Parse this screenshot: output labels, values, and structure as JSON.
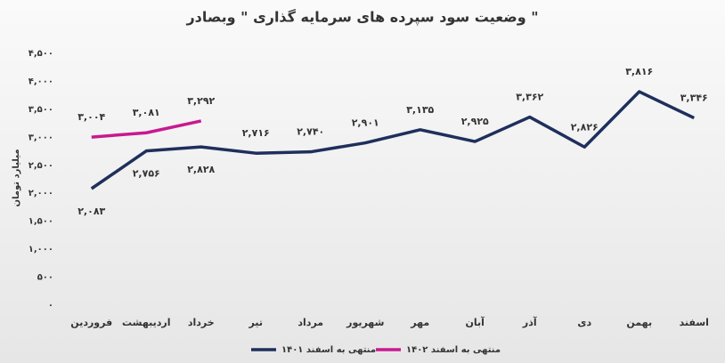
{
  "chart_data": {
    "type": "line",
    "title": "وضعیت سود سپرده های سرمایه گذاری \" وبصادر \"",
    "y_label": "میلیارد تومان",
    "categories": [
      "فروردین",
      "اردیبهشت",
      "خرداد",
      "تیر",
      "مرداد",
      "شهریور",
      "مهر",
      "آبان",
      "آذر",
      "دی",
      "بهمن",
      "اسفند"
    ],
    "series": [
      {
        "name": "منتهی به اسفند ۱۴۰۱",
        "color": "#1f2f5c",
        "values": [
          2083,
          2756,
          2828,
          2716,
          2740,
          2901,
          3135,
          2925,
          3362,
          2826,
          3816,
          3346
        ],
        "value_labels": [
          "۲,۰۸۳",
          "۲,۷۵۶",
          "۲,۸۲۸",
          "۲,۷۱۶",
          "۲,۷۴۰",
          "۲,۹۰۱",
          "۳,۱۳۵",
          "۲,۹۲۵",
          "۳,۳۶۲",
          "۲,۸۲۶",
          "۳,۸۱۶",
          "۳,۳۴۶"
        ]
      },
      {
        "name": "منتهی به اسفند ۱۴۰۲",
        "color": "#c8198f",
        "values": [
          3004,
          3081,
          3292,
          null,
          null,
          null,
          null,
          null,
          null,
          null,
          null,
          null
        ],
        "value_labels": [
          "۳,۰۰۴",
          "۳,۰۸۱",
          "۳,۲۹۲",
          null,
          null,
          null,
          null,
          null,
          null,
          null,
          null,
          null
        ]
      }
    ],
    "ylim": [
      0,
      4500
    ],
    "yticks": [
      {
        "value": 0,
        "label": "۰"
      },
      {
        "value": 500,
        "label": "۵۰۰"
      },
      {
        "value": 1000,
        "label": "۱,۰۰۰"
      },
      {
        "value": 1500,
        "label": "۱,۵۰۰"
      },
      {
        "value": 2000,
        "label": "۲,۰۰۰"
      },
      {
        "value": 2500,
        "label": "۲,۵۰۰"
      },
      {
        "value": 3000,
        "label": "۳,۰۰۰"
      },
      {
        "value": 3500,
        "label": "۳,۵۰۰"
      },
      {
        "value": 4000,
        "label": "۴,۰۰۰"
      },
      {
        "value": 4500,
        "label": "۴,۵۰۰"
      }
    ],
    "grid": false,
    "legend": "bottom"
  }
}
